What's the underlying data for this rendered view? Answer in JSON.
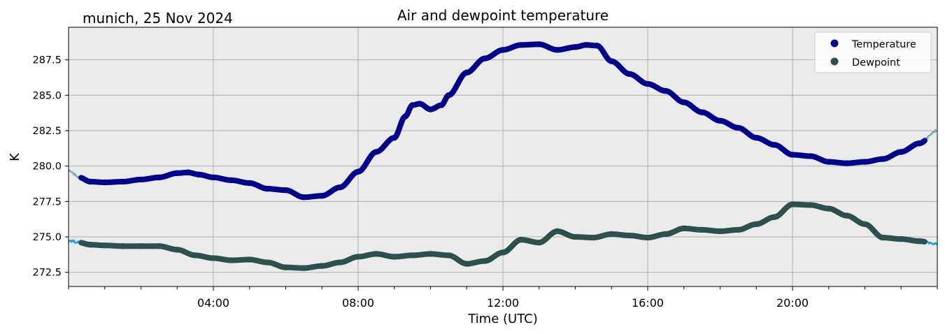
{
  "chart_data": {
    "type": "line",
    "title": "Air and dewpoint temperature",
    "subtitle": "munich, 25 Nov 2024",
    "xlabel": "Time (UTC)",
    "ylabel": "K",
    "xlim": [
      0,
      24
    ],
    "ylim": [
      271.5,
      289.8
    ],
    "x_ticks": [
      {
        "value": 4,
        "label": "04:00"
      },
      {
        "value": 8,
        "label": "08:00"
      },
      {
        "value": 12,
        "label": "12:00"
      },
      {
        "value": 16,
        "label": "16:00"
      },
      {
        "value": 20,
        "label": "20:00"
      }
    ],
    "y_ticks": [
      {
        "value": 272.5,
        "label": "272.5"
      },
      {
        "value": 275.0,
        "label": "275.0"
      },
      {
        "value": 277.5,
        "label": "277.5"
      },
      {
        "value": 280.0,
        "label": "280.0"
      },
      {
        "value": 282.5,
        "label": "282.5"
      },
      {
        "value": 285.0,
        "label": "285.0"
      },
      {
        "value": 287.5,
        "label": "287.5"
      }
    ],
    "grid": true,
    "legend": "top-right",
    "series": [
      {
        "name": "Temperature",
        "color": "#00008b",
        "raw_color": "#79a9a9",
        "x": [
          0,
          0.3,
          0.6,
          1.0,
          1.5,
          2.0,
          2.5,
          3.0,
          3.3,
          3.6,
          4.0,
          4.5,
          5.0,
          5.5,
          6.0,
          6.5,
          7.0,
          7.5,
          8.0,
          8.5,
          9.0,
          9.3,
          9.5,
          9.7,
          10.0,
          10.3,
          10.5,
          11.0,
          11.5,
          12.0,
          12.5,
          13.0,
          13.5,
          14.0,
          14.3,
          14.6,
          15.0,
          15.5,
          16.0,
          16.5,
          17.0,
          17.5,
          18.0,
          18.5,
          19.0,
          19.5,
          20.0,
          20.5,
          21.0,
          21.5,
          22.0,
          22.5,
          23.0,
          23.5,
          24.0
        ],
        "values": [
          279.7,
          279.2,
          278.9,
          278.85,
          278.9,
          279.05,
          279.2,
          279.5,
          279.55,
          279.4,
          279.2,
          279.0,
          278.8,
          278.4,
          278.3,
          277.8,
          277.9,
          278.5,
          279.6,
          281.0,
          282.0,
          283.5,
          284.3,
          284.4,
          284.0,
          284.3,
          285.0,
          286.6,
          287.6,
          288.2,
          288.55,
          288.6,
          288.2,
          288.4,
          288.55,
          288.5,
          287.4,
          286.5,
          285.8,
          285.3,
          284.5,
          283.8,
          283.2,
          282.7,
          282.0,
          281.5,
          280.8,
          280.7,
          280.3,
          280.2,
          280.3,
          280.5,
          281.0,
          281.6,
          282.5
        ]
      },
      {
        "name": "Dewpoint",
        "color": "#2f4f4f",
        "raw_color": "#1e9be8",
        "x": [
          0,
          0.3,
          0.6,
          1.0,
          1.5,
          2.0,
          2.5,
          3.0,
          3.5,
          4.0,
          4.5,
          5.0,
          5.5,
          6.0,
          6.5,
          7.0,
          7.5,
          8.0,
          8.5,
          9.0,
          9.5,
          10.0,
          10.5,
          11.0,
          11.5,
          12.0,
          12.5,
          13.0,
          13.5,
          14.0,
          14.5,
          15.0,
          15.5,
          16.0,
          16.5,
          17.0,
          17.5,
          18.0,
          18.5,
          19.0,
          19.5,
          20.0,
          20.5,
          21.0,
          21.5,
          22.0,
          22.5,
          23.0,
          23.5,
          24.0
        ],
        "values": [
          274.75,
          274.6,
          274.45,
          274.4,
          274.35,
          274.35,
          274.35,
          274.1,
          273.7,
          273.5,
          273.35,
          273.4,
          273.2,
          272.85,
          272.8,
          272.95,
          273.2,
          273.6,
          273.8,
          273.6,
          273.7,
          273.8,
          273.7,
          273.1,
          273.3,
          273.9,
          274.8,
          274.6,
          275.4,
          275.0,
          274.95,
          275.2,
          275.1,
          274.95,
          275.2,
          275.6,
          275.5,
          275.4,
          275.5,
          275.9,
          276.4,
          277.3,
          277.25,
          277.0,
          276.5,
          275.9,
          274.95,
          274.85,
          274.7,
          274.5
        ]
      }
    ]
  }
}
